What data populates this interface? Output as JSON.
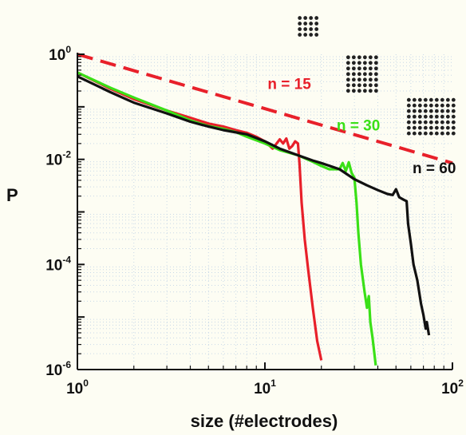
{
  "chart_data": {
    "type": "line",
    "xlabel": "size (#electrodes)",
    "ylabel": "P",
    "x_scale": "log",
    "y_scale": "log",
    "xlim": [
      1,
      100
    ],
    "ylim": [
      1e-06,
      1
    ],
    "x_ticks": [
      {
        "value": 1,
        "base": "10",
        "exp": "0"
      },
      {
        "value": 10,
        "base": "10",
        "exp": "1"
      },
      {
        "value": 100,
        "base": "10",
        "exp": "2"
      }
    ],
    "y_ticks": [
      {
        "value": 1,
        "base": "10",
        "exp": "0"
      },
      {
        "value": 0.01,
        "base": "10",
        "exp": "-2"
      },
      {
        "value": 0.0001,
        "base": "10",
        "exp": "-4"
      },
      {
        "value": 1e-06,
        "base": "10",
        "exp": "-6"
      }
    ],
    "grid": "dotted minor",
    "series": [
      {
        "name": "n = 15",
        "color": "#e8202a",
        "dashed": false,
        "points": [
          [
            1,
            0.45
          ],
          [
            1.5,
            0.22
          ],
          [
            2,
            0.14
          ],
          [
            3,
            0.085
          ],
          [
            4,
            0.062
          ],
          [
            5,
            0.048
          ],
          [
            6,
            0.042
          ],
          [
            7,
            0.036
          ],
          [
            8,
            0.032
          ],
          [
            9,
            0.027
          ],
          [
            10,
            0.022
          ],
          [
            11,
            0.016
          ],
          [
            12,
            0.024
          ],
          [
            12.5,
            0.02
          ],
          [
            13,
            0.025
          ],
          [
            13.5,
            0.016
          ],
          [
            14,
            0.018
          ],
          [
            14.5,
            0.022
          ],
          [
            15,
            0.02
          ],
          [
            15.3,
            0.008
          ],
          [
            15.7,
            0.0015
          ],
          [
            16.3,
            0.0003
          ],
          [
            17,
            8e-05
          ],
          [
            18,
            1.5e-05
          ],
          [
            19,
            3.5e-06
          ],
          [
            20,
            1.5e-06
          ]
        ]
      },
      {
        "name": "n = 30",
        "color": "#3ae017",
        "dashed": false,
        "points": [
          [
            1,
            0.45
          ],
          [
            1.5,
            0.23
          ],
          [
            2,
            0.15
          ],
          [
            3,
            0.085
          ],
          [
            4,
            0.055
          ],
          [
            5,
            0.043
          ],
          [
            6,
            0.038
          ],
          [
            7,
            0.033
          ],
          [
            8,
            0.027
          ],
          [
            10,
            0.02
          ],
          [
            12,
            0.015
          ],
          [
            15,
            0.012
          ],
          [
            18,
            0.009
          ],
          [
            20,
            0.0075
          ],
          [
            22,
            0.0065
          ],
          [
            25,
            0.0065
          ],
          [
            26,
            0.0085
          ],
          [
            27,
            0.006
          ],
          [
            28,
            0.0088
          ],
          [
            29,
            0.0055
          ],
          [
            30,
            0.0045
          ],
          [
            30.8,
            0.0015
          ],
          [
            31.5,
            0.0004
          ],
          [
            32.5,
            0.0001
          ],
          [
            34,
            3e-05
          ],
          [
            35,
            1.5e-05
          ],
          [
            35.8,
            2.5e-05
          ],
          [
            36.5,
            8e-06
          ],
          [
            37.5,
            4e-06
          ],
          [
            39,
            1.2e-06
          ]
        ]
      },
      {
        "name": "n = 60",
        "color": "#111111",
        "dashed": false,
        "points": [
          [
            1,
            0.38
          ],
          [
            1.5,
            0.19
          ],
          [
            2,
            0.12
          ],
          [
            3,
            0.075
          ],
          [
            4,
            0.052
          ],
          [
            5,
            0.042
          ],
          [
            6,
            0.036
          ],
          [
            8,
            0.03
          ],
          [
            10,
            0.022
          ],
          [
            12,
            0.016
          ],
          [
            15,
            0.012
          ],
          [
            18,
            0.0095
          ],
          [
            20,
            0.0085
          ],
          [
            25,
            0.0065
          ],
          [
            30,
            0.0042
          ],
          [
            35,
            0.0032
          ],
          [
            40,
            0.0026
          ],
          [
            45,
            0.0022
          ],
          [
            48,
            0.0021
          ],
          [
            50,
            0.0027
          ],
          [
            52,
            0.0019
          ],
          [
            55,
            0.0017
          ],
          [
            57,
            0.0016
          ],
          [
            58,
            0.0006
          ],
          [
            60,
            0.00025
          ],
          [
            62,
            0.0001
          ],
          [
            65,
            5e-05
          ],
          [
            68,
            1.8e-05
          ],
          [
            70,
            1.1e-05
          ],
          [
            72,
            6e-06
          ],
          [
            73,
            8e-06
          ],
          [
            75,
            4.5e-06
          ]
        ]
      },
      {
        "name": "",
        "color": "#e8202a",
        "dashed": true,
        "points": [
          [
            1,
            1
          ],
          [
            100,
            0.0085
          ]
        ]
      }
    ],
    "annotations": [
      {
        "text": "n = 15",
        "color": "#e8202a",
        "x": 13.5,
        "y": 0.28
      },
      {
        "text": "n = 30",
        "color": "#3ae017",
        "x": 31.5,
        "y": 0.045
      },
      {
        "text": "n = 60",
        "color": "#111111",
        "x": 80,
        "y": 0.007
      }
    ],
    "electrode_grids": [
      {
        "cols": 4,
        "rows": 4,
        "x": 17,
        "y": 3.4
      },
      {
        "cols": 6,
        "rows": 7,
        "x": 33,
        "y": 0.42
      },
      {
        "cols": 9,
        "rows": 7,
        "x": 77,
        "y": 0.065
      }
    ]
  }
}
